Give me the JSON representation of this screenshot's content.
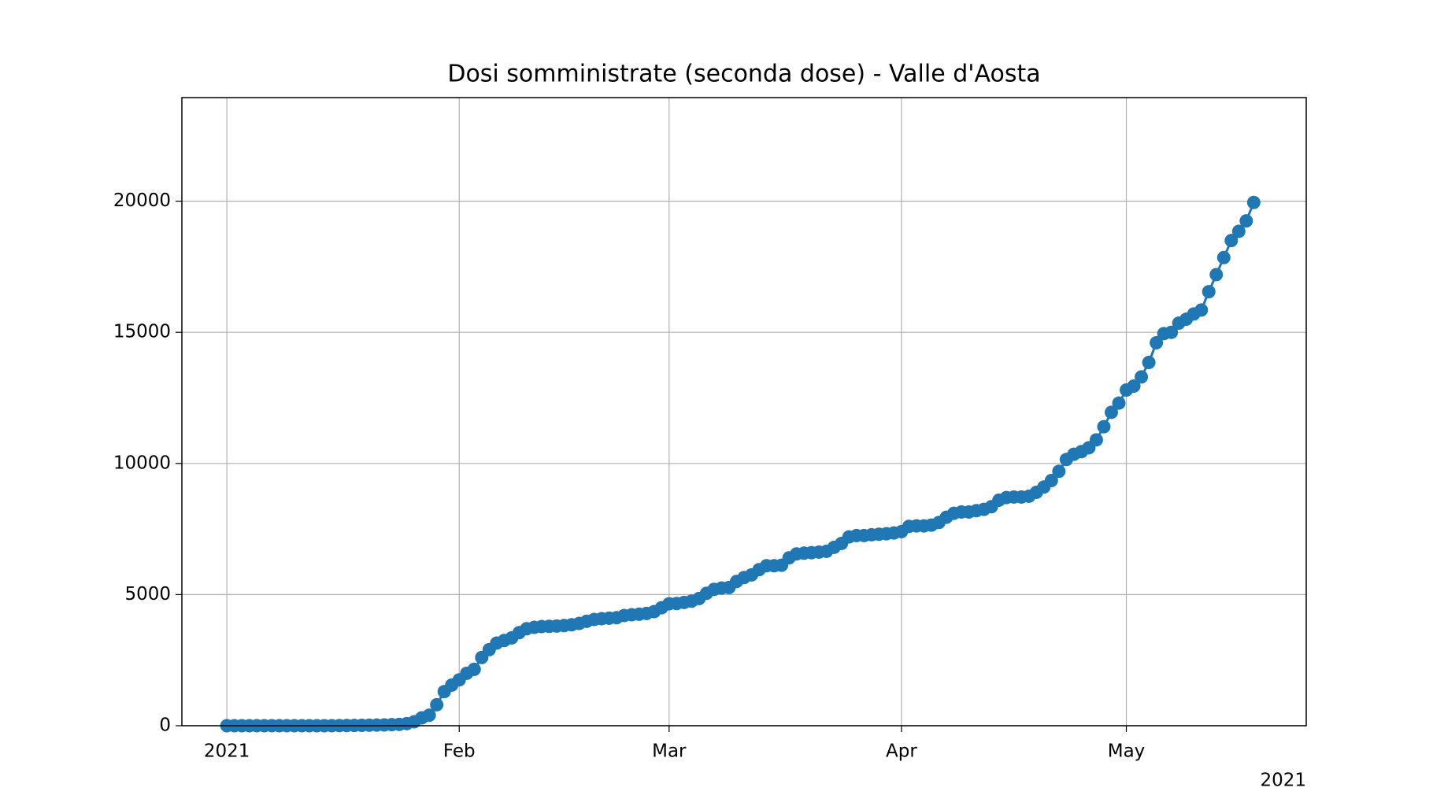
{
  "chart_data": {
    "type": "line",
    "title": "Dosi somministrate (seconda dose) - Valle d'Aosta",
    "x": [
      "2021-01-01",
      "2021-01-02",
      "2021-01-03",
      "2021-01-04",
      "2021-01-05",
      "2021-01-06",
      "2021-01-07",
      "2021-01-08",
      "2021-01-09",
      "2021-01-10",
      "2021-01-11",
      "2021-01-12",
      "2021-01-13",
      "2021-01-14",
      "2021-01-15",
      "2021-01-16",
      "2021-01-17",
      "2021-01-18",
      "2021-01-19",
      "2021-01-20",
      "2021-01-21",
      "2021-01-22",
      "2021-01-23",
      "2021-01-24",
      "2021-01-25",
      "2021-01-26",
      "2021-01-27",
      "2021-01-28",
      "2021-01-29",
      "2021-01-30",
      "2021-01-31",
      "2021-02-01",
      "2021-02-02",
      "2021-02-03",
      "2021-02-04",
      "2021-02-05",
      "2021-02-06",
      "2021-02-07",
      "2021-02-08",
      "2021-02-09",
      "2021-02-10",
      "2021-02-11",
      "2021-02-12",
      "2021-02-13",
      "2021-02-14",
      "2021-02-15",
      "2021-02-16",
      "2021-02-17",
      "2021-02-18",
      "2021-02-19",
      "2021-02-20",
      "2021-02-21",
      "2021-02-22",
      "2021-02-23",
      "2021-02-24",
      "2021-02-25",
      "2021-02-26",
      "2021-02-27",
      "2021-02-28",
      "2021-03-01",
      "2021-03-02",
      "2021-03-03",
      "2021-03-04",
      "2021-03-05",
      "2021-03-06",
      "2021-03-07",
      "2021-03-08",
      "2021-03-09",
      "2021-03-10",
      "2021-03-11",
      "2021-03-12",
      "2021-03-13",
      "2021-03-14",
      "2021-03-15",
      "2021-03-16",
      "2021-03-17",
      "2021-03-18",
      "2021-03-19",
      "2021-03-20",
      "2021-03-21",
      "2021-03-22",
      "2021-03-23",
      "2021-03-24",
      "2021-03-25",
      "2021-03-26",
      "2021-03-27",
      "2021-03-28",
      "2021-03-29",
      "2021-03-30",
      "2021-03-31",
      "2021-04-01",
      "2021-04-02",
      "2021-04-03",
      "2021-04-04",
      "2021-04-05",
      "2021-04-06",
      "2021-04-07",
      "2021-04-08",
      "2021-04-09",
      "2021-04-10",
      "2021-04-11",
      "2021-04-12",
      "2021-04-13",
      "2021-04-14",
      "2021-04-15",
      "2021-04-16",
      "2021-04-17",
      "2021-04-18",
      "2021-04-19",
      "2021-04-20",
      "2021-04-21",
      "2021-04-22",
      "2021-04-23",
      "2021-04-24",
      "2021-04-25",
      "2021-04-26",
      "2021-04-27",
      "2021-04-28",
      "2021-04-29",
      "2021-04-30",
      "2021-05-01",
      "2021-05-02",
      "2021-05-03",
      "2021-05-04",
      "2021-05-05",
      "2021-05-06",
      "2021-05-07",
      "2021-05-08",
      "2021-05-09",
      "2021-05-10",
      "2021-05-11",
      "2021-05-12",
      "2021-05-13",
      "2021-05-14",
      "2021-05-15",
      "2021-05-16",
      "2021-05-17",
      "2021-05-18"
    ],
    "series": [
      {
        "color": "#1f77b4",
        "values": [
          0,
          0,
          0,
          0,
          0,
          0,
          0,
          0,
          0,
          0,
          0,
          0,
          0,
          0,
          0,
          5,
          8,
          10,
          15,
          20,
          25,
          30,
          40,
          50,
          80,
          150,
          300,
          400,
          800,
          1300,
          1550,
          1750,
          2000,
          2150,
          2600,
          2900,
          3150,
          3250,
          3350,
          3550,
          3700,
          3750,
          3780,
          3790,
          3800,
          3820,
          3850,
          3900,
          3980,
          4050,
          4080,
          4100,
          4120,
          4200,
          4230,
          4250,
          4280,
          4350,
          4500,
          4650,
          4660,
          4700,
          4750,
          4850,
          5050,
          5200,
          5250,
          5270,
          5500,
          5650,
          5750,
          5950,
          6100,
          6100,
          6120,
          6400,
          6550,
          6580,
          6600,
          6620,
          6650,
          6800,
          6950,
          7200,
          7250,
          7250,
          7280,
          7300,
          7320,
          7350,
          7400,
          7600,
          7620,
          7620,
          7650,
          7750,
          7950,
          8100,
          8150,
          8150,
          8200,
          8250,
          8350,
          8600,
          8700,
          8720,
          8720,
          8750,
          8900,
          9100,
          9350,
          9700,
          10150,
          10350,
          10450,
          10600,
          10900,
          11400,
          11950,
          12300,
          12800,
          12950,
          13300,
          13850,
          14600,
          14950,
          15000,
          15350,
          15500,
          15700,
          15850,
          16550,
          17200,
          17850,
          18500,
          18850,
          19250,
          19950
        ]
      }
    ],
    "xlim": [
      "2020-12-26",
      "2021-05-25"
    ],
    "xticks": [
      {
        "value": "2021-01-01",
        "label": "2021"
      },
      {
        "value": "2021-02-01",
        "label": "Feb"
      },
      {
        "value": "2021-03-01",
        "label": "Mar"
      },
      {
        "value": "2021-04-01",
        "label": "Apr"
      },
      {
        "value": "2021-05-01",
        "label": "May"
      }
    ],
    "x_offset_label": "2021",
    "ylim": [
      0,
      23950
    ],
    "yticks": [
      0,
      5000,
      10000,
      15000,
      20000
    ],
    "grid": true
  }
}
